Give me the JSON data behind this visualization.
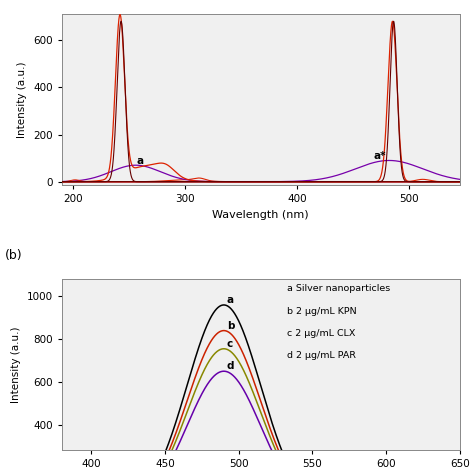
{
  "panel_a": {
    "xlabel": "Wavelength (nm)",
    "ylabel": "Intensity (a.u.)",
    "xlim": [
      190,
      545
    ],
    "ylim": [
      -15,
      710
    ],
    "yticks": [
      0,
      200,
      400,
      600
    ],
    "xticks": [
      200,
      300,
      400,
      500
    ],
    "bg_color": "#f0f0f0",
    "label_a": "a",
    "label_a_star": "a*"
  },
  "panel_b": {
    "ylabel": "Intensity (a.u.)",
    "xlim": [
      380,
      650
    ],
    "ylim": [
      280,
      1080
    ],
    "yticks": [
      400,
      600,
      800,
      1000
    ],
    "bg_color": "#f0f0f0",
    "peak_wavelength": 490,
    "curves": [
      {
        "label": "a",
        "peak": 960,
        "color": "#000000",
        "sigma": 25
      },
      {
        "label": "b",
        "peak": 840,
        "color": "#cc2200",
        "sigma": 25
      },
      {
        "label": "c",
        "peak": 755,
        "color": "#888800",
        "sigma": 25
      },
      {
        "label": "d",
        "peak": 650,
        "color": "#6600aa",
        "sigma": 25
      }
    ],
    "legend_texts": [
      "a Silver nanoparticles",
      "b 2 μg/mL KPN",
      "c 2 μg/mL CLX",
      "d 2 μg/mL PAR"
    ]
  }
}
